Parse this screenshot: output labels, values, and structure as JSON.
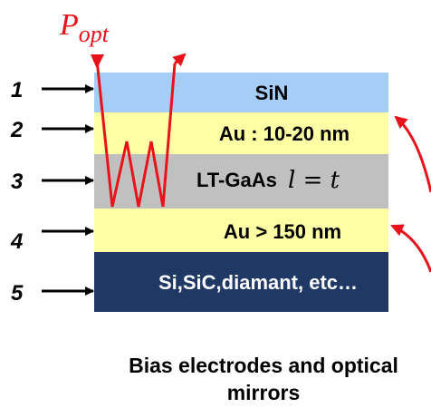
{
  "incident_light": {
    "main": "P",
    "subscript": "opt"
  },
  "layers": [
    {
      "number": "1",
      "label": "SiN",
      "color": "#a5cdf5"
    },
    {
      "number": "2",
      "label": "Au : 10-20 nm",
      "color": "#ffffa6"
    },
    {
      "number": "3",
      "label": "LT-GaAs",
      "math": "l = t",
      "color": "#c0c0c0"
    },
    {
      "number": "4",
      "label": "Au > 150 nm",
      "color": "#ffffa6"
    },
    {
      "number": "5",
      "label": "Si,SiC,diamant, etc…",
      "color": "#1f3864"
    }
  ],
  "caption": {
    "line1": "Bias electrodes and optical",
    "line2": "mirrors"
  },
  "colors": {
    "beam": "#e8121a",
    "arrows": "#000000"
  }
}
